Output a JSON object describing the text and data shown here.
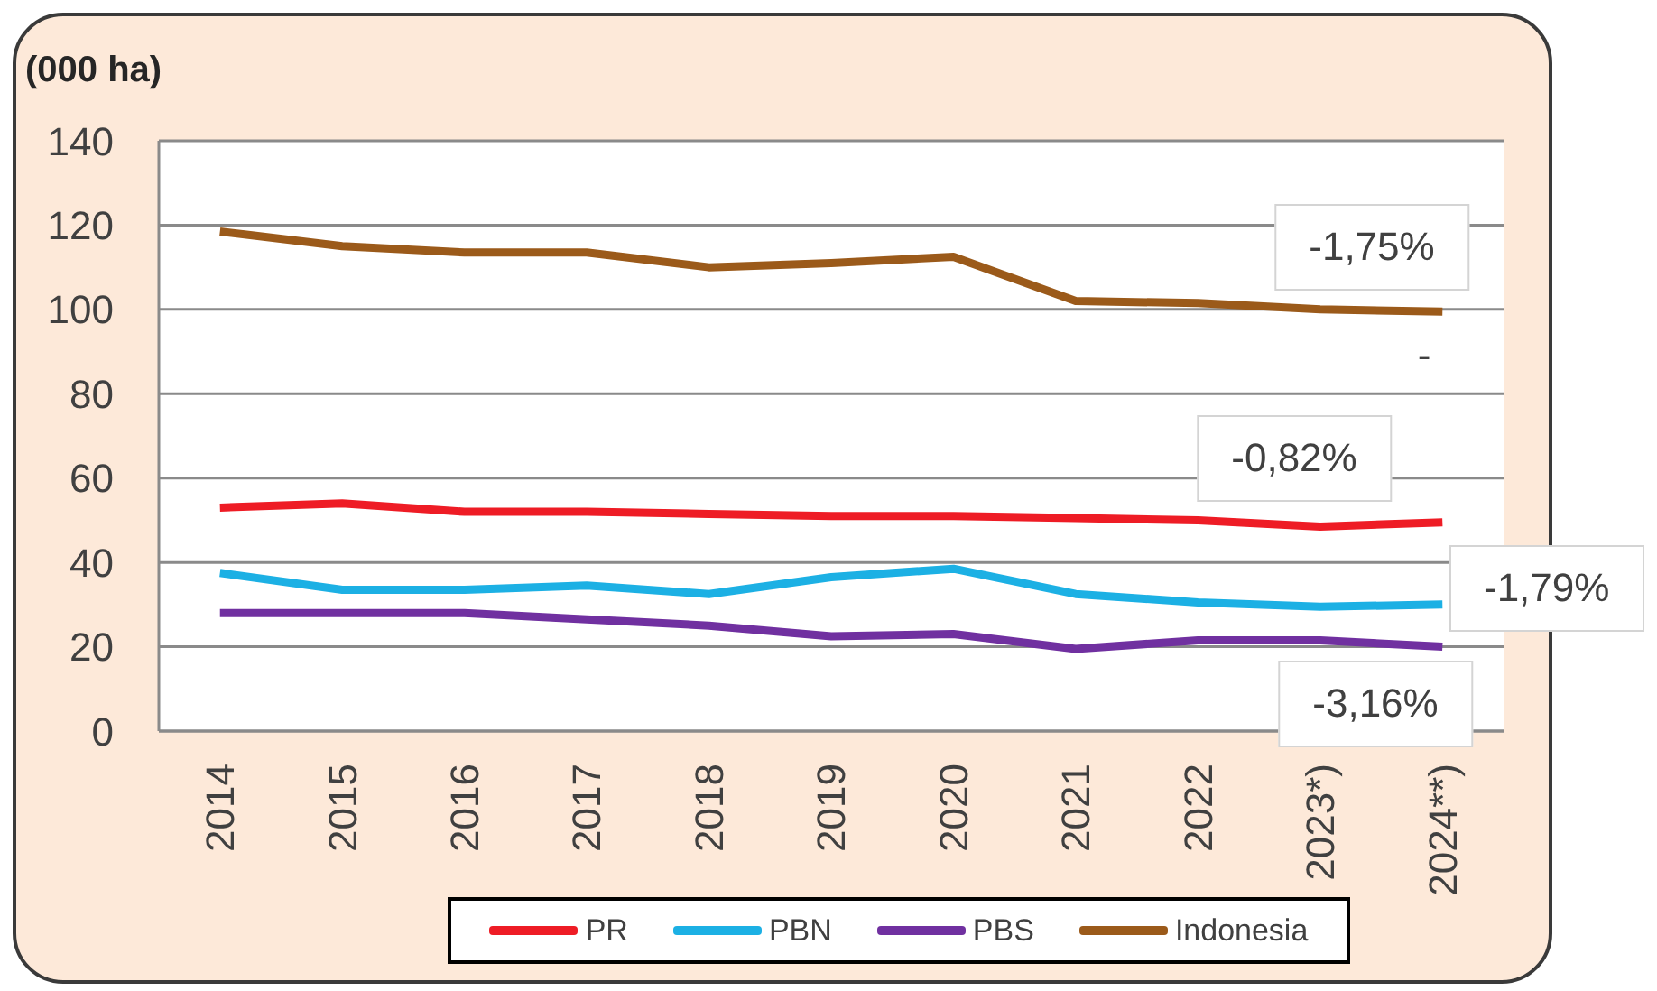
{
  "chart_data": {
    "type": "line",
    "ylabel": "(000 ha)",
    "categories": [
      "2014",
      "2015",
      "2016",
      "2017",
      "2018",
      "2019",
      "2020",
      "2021",
      "2022",
      "2023*)",
      "2024**)"
    ],
    "series": [
      {
        "name": "PR",
        "color": "#ee1c25",
        "values": [
          53,
          54,
          52,
          52,
          51.5,
          51,
          51,
          50.5,
          50,
          48.5,
          49.5
        ]
      },
      {
        "name": "PBN",
        "color": "#1cb0e4",
        "values": [
          37.5,
          33.5,
          33.5,
          34.5,
          32.5,
          36.5,
          38.5,
          32.5,
          30.5,
          29.5,
          30
        ]
      },
      {
        "name": "PBS",
        "color": "#7030a0",
        "values": [
          28,
          28,
          28,
          26.5,
          25,
          22.5,
          23,
          19.5,
          21.5,
          21.5,
          20
        ]
      },
      {
        "name": "Indonesia",
        "color": "#9b5a1a",
        "values": [
          118.5,
          115,
          113.5,
          113.5,
          110,
          111,
          112.5,
          102,
          101.5,
          100,
          99.5
        ]
      }
    ],
    "ylim": [
      0,
      140
    ],
    "yticks": [
      0,
      20,
      40,
      60,
      80,
      100,
      120,
      140
    ],
    "grid": "y",
    "legend": "bottom",
    "line_style": "solid",
    "annotations": [
      "-1,75%",
      "-0,82%",
      "-1,79%",
      "-3,16%",
      "-"
    ]
  }
}
